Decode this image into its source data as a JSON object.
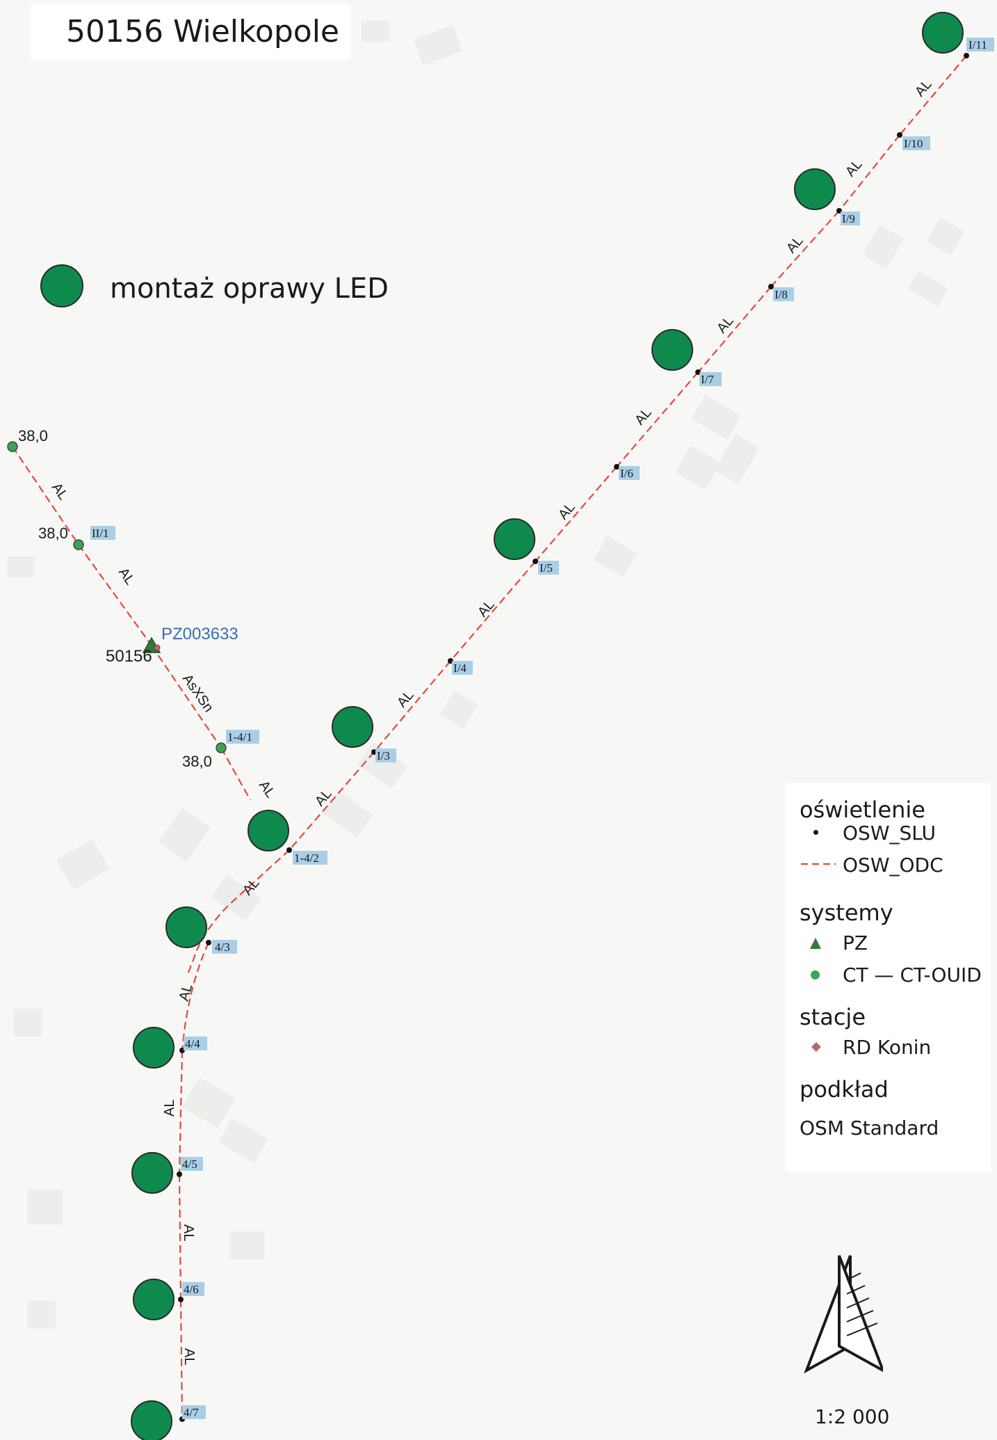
{
  "map": {
    "title": "50156 Wielkopole",
    "legend_main": "montaż oprawy LED",
    "station_pz": "PZ003633",
    "station_code": "50156",
    "scale": "1:2 000",
    "colors": {
      "lamp": "#0f8a4d",
      "line": "#e8473a",
      "pole": "#111111",
      "label_bg": "#a9cfe8",
      "pz": "#2f7a3c"
    },
    "lines": [
      {
        "label": "AL"
      },
      {
        "label": "AL"
      },
      {
        "label": "AL"
      },
      {
        "label": "AL"
      },
      {
        "label": "AL"
      },
      {
        "label": "AL"
      },
      {
        "label": "AL"
      },
      {
        "label": "AL"
      },
      {
        "label": "AL"
      },
      {
        "label": "AL"
      },
      {
        "label": "AL"
      },
      {
        "label": "AL"
      },
      {
        "label": "AL"
      },
      {
        "label": "AL"
      },
      {
        "label": "AsXSn"
      },
      {
        "label": "AL"
      }
    ],
    "pole_labels": [
      "I/11",
      "I/10",
      "I/9",
      "I/8",
      "I/7",
      "I/6",
      "I/5",
      "I/4",
      "I/3",
      "1-4/2",
      "4/3",
      "4/4",
      "4/5",
      "4/6",
      "4/7",
      "II/1",
      "1-4/1"
    ],
    "ct_values": [
      "38,0",
      "38,0",
      "38,0"
    ]
  },
  "legend": {
    "oswietlenie": "oświetlenie",
    "osw_slu": "OSW_SLU",
    "osw_odc": "OSW_ODC",
    "systemy": "systemy",
    "pz": "PZ",
    "ct": "CT — CT-OUID",
    "stacje": "stacje",
    "rd": "RD Konin",
    "podklad": "podkład",
    "osm": "OSM Standard"
  }
}
